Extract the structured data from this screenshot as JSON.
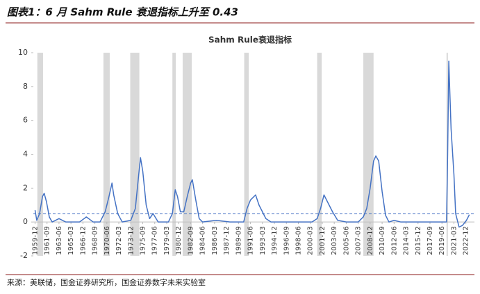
{
  "header": {
    "title": "图表1：6 月 Sahm Rule 衰退指标上升至 0.43"
  },
  "footer": {
    "source": "来源：美联储，国金证券研究所，国金证券数字未来实验室"
  },
  "chart_data": {
    "type": "line",
    "title": "Sahm Rule衰退指标",
    "color": "#4472c4",
    "ylim": [
      -2,
      10
    ],
    "yticks": [
      -2,
      0,
      2,
      4,
      6,
      8,
      10
    ],
    "xlim": [
      "1959-09",
      "2024-03"
    ],
    "xticks": [
      "1959-12",
      "1961-09",
      "1963-06",
      "1965-03",
      "1966-12",
      "1968-09",
      "1970-06",
      "1972-03",
      "1973-12",
      "1975-09",
      "1977-06",
      "1979-03",
      "1980-12",
      "1982-09",
      "1984-06",
      "1986-03",
      "1987-12",
      "1989-09",
      "1991-06",
      "1993-03",
      "1994-12",
      "1996-09",
      "1998-06",
      "2000-03",
      "2001-12",
      "2003-09",
      "2005-06",
      "2007-03",
      "2008-12",
      "2010-09",
      "2012-06",
      "2014-03",
      "2015-12",
      "2017-09",
      "2019-06",
      "2021-03",
      "2022-12"
    ],
    "threshold": 0.5,
    "recessions": [
      [
        "1960-04",
        "1961-02"
      ],
      [
        "1969-12",
        "1970-11"
      ],
      [
        "1973-11",
        "1975-03"
      ],
      [
        "1980-01",
        "1980-07"
      ],
      [
        "1981-07",
        "1982-11"
      ],
      [
        "1990-07",
        "1991-03"
      ],
      [
        "2001-03",
        "2001-11"
      ],
      [
        "2007-12",
        "2009-06"
      ],
      [
        "2020-02",
        "2020-04"
      ]
    ],
    "x": [
      "1959-12",
      "1960-03",
      "1960-08",
      "1961-01",
      "1961-04",
      "1961-08",
      "1962-01",
      "1962-06",
      "1963-06",
      "1964-06",
      "1966-06",
      "1967-06",
      "1968-06",
      "1969-06",
      "1970-03",
      "1970-09",
      "1971-03",
      "1971-06",
      "1972-01",
      "1972-09",
      "1973-12",
      "1974-08",
      "1975-01",
      "1975-05",
      "1975-09",
      "1976-03",
      "1976-09",
      "1977-03",
      "1977-12",
      "1979-06",
      "1980-01",
      "1980-06",
      "1980-10",
      "1981-03",
      "1981-09",
      "1982-03",
      "1982-09",
      "1982-12",
      "1983-06",
      "1983-12",
      "1984-06",
      "1986-06",
      "1988-06",
      "1990-06",
      "1990-12",
      "1991-06",
      "1992-03",
      "1992-09",
      "1993-03",
      "1993-09",
      "1994-06",
      "1996-06",
      "1998-06",
      "2000-06",
      "2001-03",
      "2001-09",
      "2002-03",
      "2002-09",
      "2003-06",
      "2004-03",
      "2005-06",
      "2007-03",
      "2007-12",
      "2008-06",
      "2008-12",
      "2009-06",
      "2009-10",
      "2010-03",
      "2010-09",
      "2011-03",
      "2011-09",
      "2012-06",
      "2013-06",
      "2015-06",
      "2017-06",
      "2019-06",
      "2020-02",
      "2020-04",
      "2020-06",
      "2020-10",
      "2021-03",
      "2021-06",
      "2021-12",
      "2022-06",
      "2023-01",
      "2023-06"
    ],
    "values": [
      0.7,
      0.1,
      0.5,
      1.5,
      1.7,
      1.2,
      0.3,
      0.0,
      0.2,
      0.0,
      0.0,
      0.3,
      0.0,
      0.0,
      0.6,
      1.4,
      2.3,
      1.6,
      0.5,
      0.0,
      0.1,
      0.8,
      2.5,
      3.8,
      3.0,
      1.0,
      0.2,
      0.5,
      0.0,
      0.0,
      0.5,
      1.9,
      1.5,
      0.6,
      0.6,
      1.5,
      2.3,
      2.5,
      1.3,
      0.2,
      0.0,
      0.1,
      0.0,
      0.0,
      0.8,
      1.3,
      1.6,
      1.0,
      0.6,
      0.2,
      0.0,
      0.0,
      0.0,
      0.0,
      0.2,
      0.8,
      1.6,
      1.2,
      0.6,
      0.1,
      0.0,
      0.0,
      0.3,
      0.8,
      2.0,
      3.6,
      3.9,
      3.6,
      1.8,
      0.4,
      0.0,
      0.1,
      0.0,
      0.0,
      0.0,
      0.0,
      0.0,
      4.0,
      9.5,
      5.5,
      2.8,
      0.5,
      -0.3,
      -0.2,
      0.1,
      0.43
    ]
  }
}
